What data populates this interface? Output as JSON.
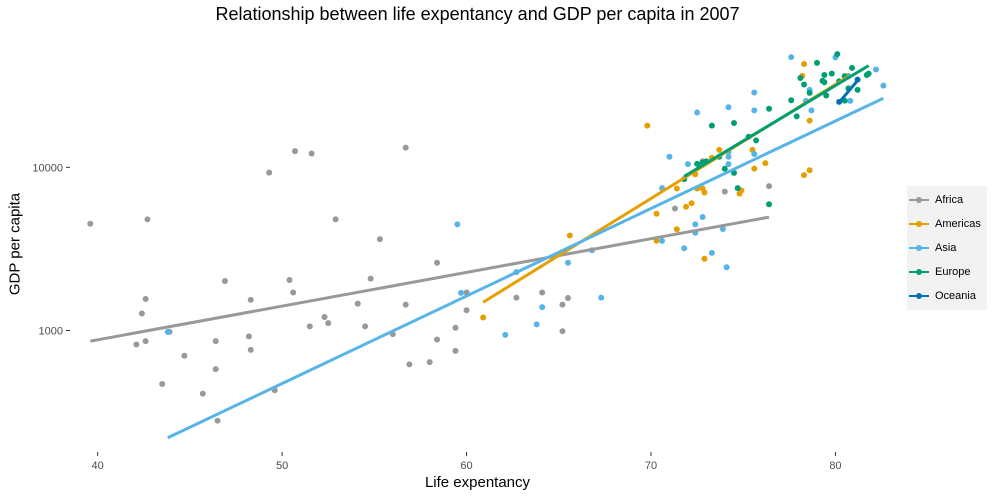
{
  "chart_data": {
    "type": "scatter",
    "title": "Relationship between life expentancy and GDP per capita in 2007",
    "xlabel": "Life expentancy",
    "ylabel": "GDP per capita",
    "x_ticks": [
      40,
      50,
      60,
      70,
      80
    ],
    "y_ticks": [
      1000,
      10000
    ],
    "y_scale": "log",
    "xlim": [
      38.5,
      83.5
    ],
    "ylim": [
      180,
      62000
    ],
    "grid": false,
    "legend_position": "right",
    "series": [
      {
        "name": "Africa",
        "color": "#999999",
        "points": [
          [
            39.6,
            4510
          ],
          [
            42.1,
            820
          ],
          [
            42.4,
            1270
          ],
          [
            42.6,
            860
          ],
          [
            42.6,
            1560
          ],
          [
            42.7,
            4800
          ],
          [
            43.5,
            470
          ],
          [
            43.9,
            980
          ],
          [
            44.7,
            700
          ],
          [
            45.7,
            410
          ],
          [
            46.4,
            580
          ],
          [
            46.4,
            860
          ],
          [
            46.5,
            280
          ],
          [
            46.9,
            2010
          ],
          [
            48.2,
            920
          ],
          [
            48.3,
            760
          ],
          [
            48.3,
            1540
          ],
          [
            49.3,
            9270
          ],
          [
            49.6,
            430
          ],
          [
            50.4,
            2040
          ],
          [
            50.6,
            1710
          ],
          [
            50.7,
            12570
          ],
          [
            51.5,
            1060
          ],
          [
            51.6,
            12150
          ],
          [
            52.3,
            1210
          ],
          [
            52.5,
            1110
          ],
          [
            52.9,
            4800
          ],
          [
            54.1,
            1460
          ],
          [
            54.5,
            1060
          ],
          [
            54.8,
            2080
          ],
          [
            55.3,
            3630
          ],
          [
            56.0,
            950
          ],
          [
            56.7,
            1440
          ],
          [
            56.7,
            13210
          ],
          [
            56.9,
            620
          ],
          [
            58.0,
            640
          ],
          [
            58.4,
            880
          ],
          [
            58.4,
            2600
          ],
          [
            59.4,
            1040
          ],
          [
            59.4,
            750
          ],
          [
            60.0,
            1330
          ],
          [
            60.0,
            1710
          ],
          [
            62.7,
            1590
          ],
          [
            64.1,
            1710
          ],
          [
            65.2,
            1440
          ],
          [
            65.2,
            990
          ],
          [
            65.5,
            1580
          ],
          [
            71.3,
            5590
          ],
          [
            72.8,
            10900
          ],
          [
            74.0,
            7090
          ],
          [
            76.4,
            7670
          ]
        ],
        "fit": [
          [
            39.6,
            860
          ],
          [
            76.4,
            4950
          ]
        ]
      },
      {
        "name": "Americas",
        "color": "#E69F00",
        "points": [
          [
            60.9,
            1200
          ],
          [
            65.6,
            3820
          ],
          [
            69.8,
            18000
          ],
          [
            70.3,
            3550
          ],
          [
            70.3,
            5190
          ],
          [
            71.4,
            4170
          ],
          [
            71.4,
            7410
          ],
          [
            71.9,
            5730
          ],
          [
            72.2,
            6020
          ],
          [
            72.4,
            9070
          ],
          [
            72.5,
            7410
          ],
          [
            72.8,
            7410
          ],
          [
            72.9,
            2750
          ],
          [
            72.9,
            7010
          ],
          [
            73.3,
            11420
          ],
          [
            73.7,
            12780
          ],
          [
            74.8,
            6900
          ],
          [
            74.9,
            7210
          ],
          [
            75.5,
            12780
          ],
          [
            75.6,
            9810
          ],
          [
            76.2,
            10610
          ],
          [
            78.2,
            36320
          ],
          [
            78.3,
            8950
          ],
          [
            78.3,
            42950
          ],
          [
            78.6,
            9600
          ],
          [
            78.6,
            19330
          ],
          [
            80.7,
            36310
          ]
        ],
        "fit": [
          [
            60.9,
            1490
          ],
          [
            80.7,
            36000
          ]
        ]
      },
      {
        "name": "Asia",
        "color": "#56B4E9",
        "points": [
          [
            43.8,
            980
          ],
          [
            59.5,
            4470
          ],
          [
            59.7,
            1700
          ],
          [
            62.1,
            940
          ],
          [
            62.7,
            2280
          ],
          [
            63.8,
            1090
          ],
          [
            64.1,
            1390
          ],
          [
            65.5,
            2600
          ],
          [
            66.8,
            3100
          ],
          [
            67.3,
            1590
          ],
          [
            70.6,
            3540
          ],
          [
            70.6,
            7460
          ],
          [
            71.0,
            11610
          ],
          [
            71.8,
            3190
          ],
          [
            72.0,
            10460
          ],
          [
            72.4,
            4470
          ],
          [
            72.4,
            3970
          ],
          [
            72.5,
            21650
          ],
          [
            72.8,
            4960
          ],
          [
            73.3,
            2990
          ],
          [
            73.9,
            4190
          ],
          [
            74.1,
            2440
          ],
          [
            74.2,
            10460
          ],
          [
            74.2,
            11610
          ],
          [
            74.2,
            12450
          ],
          [
            74.2,
            23350
          ],
          [
            75.6,
            22320
          ],
          [
            75.6,
            28720
          ],
          [
            75.6,
            12060
          ],
          [
            77.6,
            47310
          ],
          [
            78.4,
            25520
          ],
          [
            78.6,
            29800
          ],
          [
            78.7,
            22320
          ],
          [
            80.0,
            47140
          ],
          [
            80.7,
            36100
          ],
          [
            80.8,
            25520
          ],
          [
            82.2,
            39720
          ],
          [
            82.6,
            31660
          ]
        ],
        "fit": [
          [
            43.8,
            220
          ],
          [
            82.6,
            26500
          ]
        ]
      },
      {
        "name": "Europe",
        "color": "#009E73",
        "points": [
          [
            71.8,
            8460
          ],
          [
            72.5,
            10500
          ],
          [
            72.8,
            10680
          ],
          [
            73.0,
            10880
          ],
          [
            73.3,
            18000
          ],
          [
            73.7,
            11600
          ],
          [
            74.0,
            9800
          ],
          [
            74.5,
            18680
          ],
          [
            74.5,
            9250
          ],
          [
            74.7,
            7450
          ],
          [
            75.3,
            15390
          ],
          [
            75.7,
            14620
          ],
          [
            76.4,
            5940
          ],
          [
            76.4,
            22830
          ],
          [
            77.6,
            25770
          ],
          [
            77.9,
            20510
          ],
          [
            78.1,
            35280
          ],
          [
            78.3,
            32170
          ],
          [
            78.6,
            28570
          ],
          [
            79.0,
            43620
          ],
          [
            79.3,
            33860
          ],
          [
            79.4,
            33210
          ],
          [
            79.4,
            36800
          ],
          [
            79.5,
            27540
          ],
          [
            79.8,
            37510
          ],
          [
            80.1,
            49360
          ],
          [
            80.2,
            33690
          ],
          [
            80.5,
            25630
          ],
          [
            80.5,
            36180
          ],
          [
            80.7,
            30470
          ],
          [
            80.9,
            40680
          ],
          [
            81.2,
            29800
          ],
          [
            81.7,
            36800
          ],
          [
            81.8,
            37510
          ]
        ],
        "fit": [
          [
            71.8,
            8800
          ],
          [
            81.8,
            42000
          ]
        ]
      },
      {
        "name": "Oceania",
        "color": "#0072B2",
        "points": [
          [
            80.2,
            25190
          ],
          [
            81.2,
            34440
          ]
        ],
        "fit": [
          [
            80.2,
            25000
          ],
          [
            81.2,
            34000
          ]
        ]
      }
    ]
  }
}
